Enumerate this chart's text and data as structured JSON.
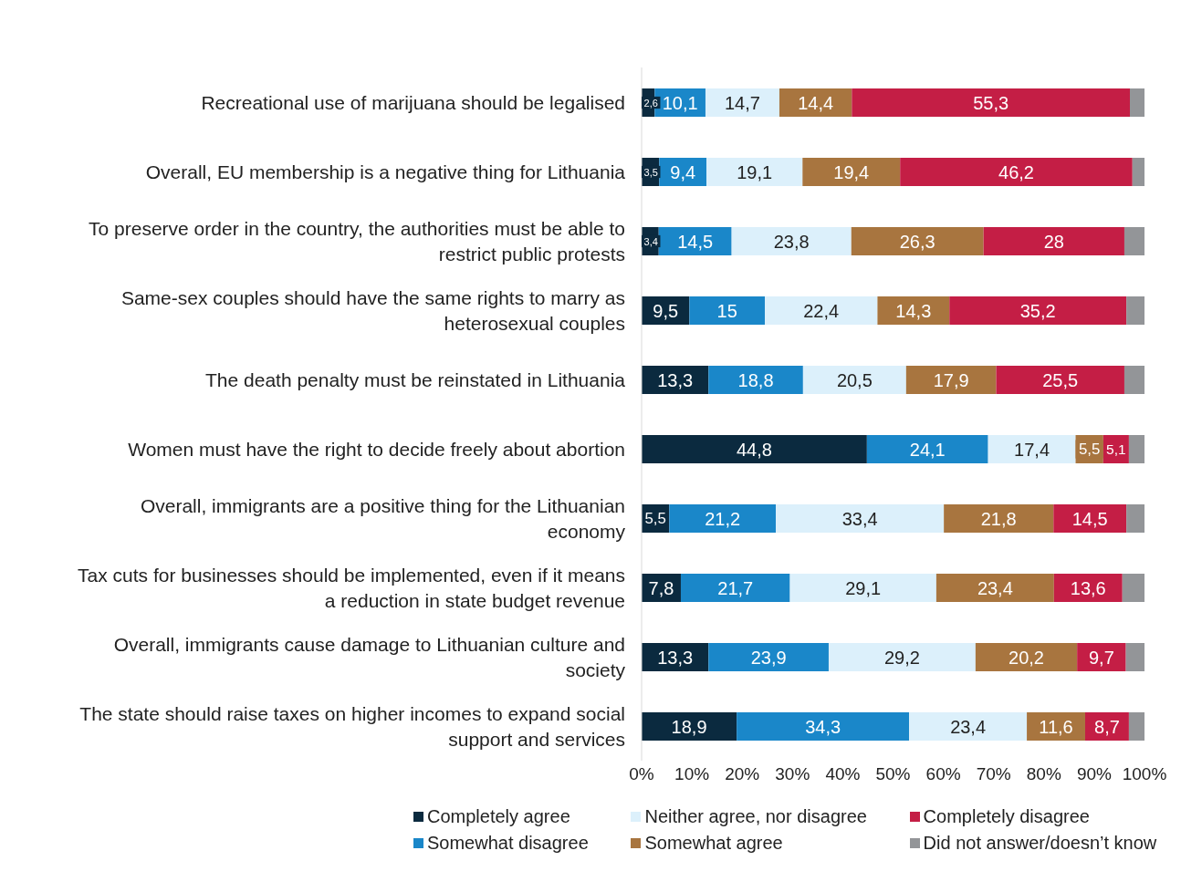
{
  "chart_data": {
    "type": "bar",
    "orientation": "horizontal",
    "stacked": true,
    "categories": [
      "Recreational use of marijuana should be legalised",
      "Overall, EU membership is a negative thing for Lithuania",
      "To preserve order in the country, the authorities must be able to restrict public protests",
      "Same-sex couples should have the same rights to marry as heterosexual couples",
      "The death penalty must be reinstated in Lithuania",
      "Women must have the right to decide freely about abortion",
      "Overall, immigrants are a positive thing for the Lithuanian economy",
      "Tax cuts for businesses should be implemented, even if it means a reduction in state budget revenue",
      "Overall, immigrants cause damage to Lithuanian culture and society",
      "The state should raise taxes on higher incomes to expand social support and services"
    ],
    "series": [
      {
        "name": "Completely agree",
        "color": "#0b2a3f",
        "values": [
          2.6,
          3.5,
          3.4,
          9.5,
          13.3,
          44.8,
          5.5,
          7.8,
          13.3,
          18.9
        ],
        "value_labels": [
          "2,6",
          "3,5",
          "3,4",
          "9,5",
          "13,3",
          "44,8",
          "5,5",
          "7,8",
          "13,3",
          "18,9"
        ]
      },
      {
        "name": "Somewhat disagree",
        "color": "#1a87c9",
        "values": [
          10.1,
          9.4,
          14.5,
          15,
          18.8,
          24.1,
          21.2,
          21.7,
          23.9,
          34.3
        ],
        "value_labels": [
          "10,1",
          "9,4",
          "14,5",
          "15",
          "18,8",
          "24,1",
          "21,2",
          "21,7",
          "23,9",
          "34,3"
        ]
      },
      {
        "name": "Neither agree, nor disagree",
        "color": "#dcf0fb",
        "values": [
          14.7,
          19.1,
          23.8,
          22.4,
          20.5,
          17.4,
          33.4,
          29.1,
          29.2,
          23.4
        ],
        "value_labels": [
          "14,7",
          "19,1",
          "23,8",
          "22,4",
          "20,5",
          "17,4",
          "33,4",
          "29,1",
          "29,2",
          "23,4"
        ]
      },
      {
        "name": "Somewhat agree",
        "color": "#a8753f",
        "values": [
          14.4,
          19.4,
          26.3,
          14.3,
          17.9,
          5.5,
          21.8,
          23.4,
          20.2,
          11.6
        ],
        "value_labels": [
          "14,4",
          "19,4",
          "26,3",
          "14,3",
          "17,9",
          "5,5",
          "21,8",
          "23,4",
          "20,2",
          "11,6"
        ]
      },
      {
        "name": "Completely disagree",
        "color": "#c41e45",
        "values": [
          55.3,
          46.2,
          28,
          35.2,
          25.5,
          5.1,
          14.5,
          13.6,
          9.7,
          8.7
        ],
        "value_labels": [
          "55,3",
          "46,2",
          "28",
          "35,2",
          "25,5",
          "5,1",
          "14,5",
          "13,6",
          "9,7",
          "8,7"
        ]
      },
      {
        "name": "Did not answer/doesn’t  know",
        "color": "#939598",
        "values": [
          2.9,
          2.4,
          4,
          3.6,
          4,
          3.1,
          3.6,
          4.4,
          3.7,
          3.1
        ]
      }
    ],
    "xlim": [
      0,
      100
    ],
    "xticks": [
      {
        "value": 0,
        "label": "0%"
      },
      {
        "value": 10,
        "label": "10%"
      },
      {
        "value": 20,
        "label": "20%"
      },
      {
        "value": 30,
        "label": "30%"
      },
      {
        "value": 40,
        "label": "40%"
      },
      {
        "value": 50,
        "label": "50%"
      },
      {
        "value": 60,
        "label": "60%"
      },
      {
        "value": 70,
        "label": "70%"
      },
      {
        "value": 80,
        "label": "80%"
      },
      {
        "value": 90,
        "label": "90%"
      },
      {
        "value": 100,
        "label": "100%"
      }
    ],
    "grid": false,
    "legend": "bottom"
  }
}
